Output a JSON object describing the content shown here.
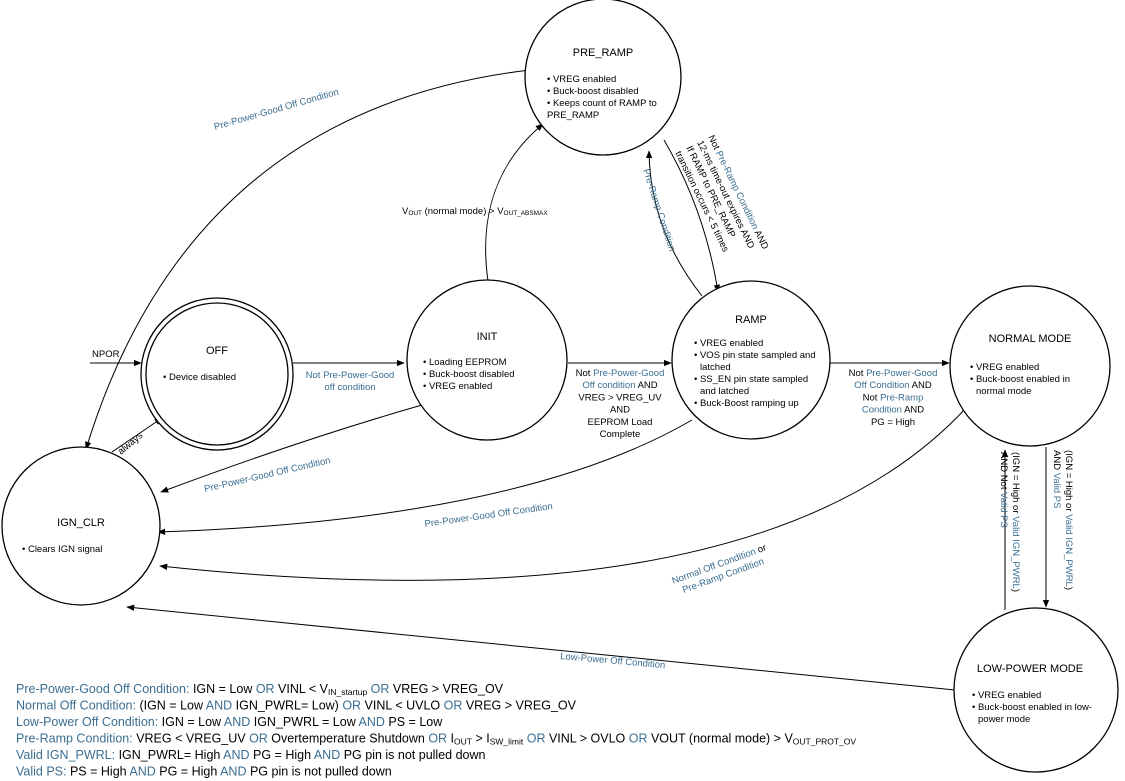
{
  "colors": {
    "keyword": "#3b6e91",
    "text": "#000000"
  },
  "states": {
    "pre_ramp": {
      "title": "PRE_RAMP",
      "bullets": [
        "• VREG enabled",
        "• Buck-boost disabled",
        "• Keeps count of RAMP to",
        "PRE_RAMP"
      ]
    },
    "off": {
      "title": "OFF",
      "bullets": [
        "• Device disabled"
      ]
    },
    "init": {
      "title": "INIT",
      "bullets": [
        "• Loading EEPROM",
        "• Buck-boost disabled",
        "• VREG enabled"
      ]
    },
    "ramp": {
      "title": "RAMP",
      "bullets": [
        "• VREG enabled",
        "• VOS pin state sampled and",
        "latched",
        "• SS_EN pin state sampled",
        "and latched",
        "• Buck-Boost ramping up"
      ]
    },
    "normal": {
      "title": "NORMAL MODE",
      "bullets": [
        "• VREG enabled",
        "• Buck-boost enabled in",
        "normal mode"
      ]
    },
    "ign_clr": {
      "title": "IGN_CLR",
      "bullets": [
        "• Clears IGN signal"
      ]
    },
    "low_power": {
      "title": "LOW-POWER MODE",
      "bullets": [
        "• VREG enabled",
        "• Buck-boost enabled in low-",
        "power mode"
      ]
    }
  },
  "edges": {
    "npor": [
      [
        [
          "NPOR",
          "n"
        ]
      ]
    ],
    "always": [
      [
        [
          "always",
          "n"
        ]
      ]
    ],
    "off_to_init": [
      [
        [
          "Not Pre-Power-Good",
          "k"
        ]
      ],
      [
        [
          "off condition",
          "k"
        ]
      ]
    ],
    "init_to_ramp": [
      [
        [
          "Not ",
          "n"
        ],
        [
          "Pre-Power-Good",
          "k"
        ]
      ],
      [
        [
          "Off condition",
          "k"
        ],
        [
          " AND",
          "n"
        ]
      ],
      [
        [
          "VREG > VREG_UV",
          "n"
        ]
      ],
      [
        [
          "AND",
          "n"
        ]
      ],
      [
        [
          "EEPROM Load",
          "n"
        ]
      ],
      [
        [
          "Complete",
          "n"
        ]
      ]
    ],
    "ramp_to_normal": [
      [
        [
          "Not ",
          "n"
        ],
        [
          "Pre-Power-Good",
          "k"
        ]
      ],
      [
        [
          "Off Condition",
          "k"
        ],
        [
          " AND",
          "n"
        ]
      ],
      [
        [
          "Not ",
          "n"
        ],
        [
          "Pre-Ramp",
          "k"
        ]
      ],
      [
        [
          "Condition",
          "k"
        ],
        [
          " AND",
          "n"
        ]
      ],
      [
        [
          "PG = High",
          "n"
        ]
      ]
    ],
    "init_to_pre_ramp": [
      [
        [
          "V",
          "n"
        ],
        [
          "OUT",
          "sub"
        ],
        [
          " (normal mode) > V",
          "n"
        ],
        [
          "OUT_ABSMAX",
          "sub"
        ]
      ]
    ],
    "pre_ramp_to_ign_clr": [
      [
        [
          "Pre-Power-Good Off Condition",
          "k"
        ]
      ]
    ],
    "init_to_ign_clr": [
      [
        [
          "Pre-Power-Good Off Condition",
          "k"
        ]
      ]
    ],
    "ramp_to_ign_clr": [
      [
        [
          "Pre-Power-Good Off Condition",
          "k"
        ]
      ]
    ],
    "normal_to_ign_clr": [
      [
        [
          "Normal Off Condition",
          "k"
        ],
        [
          " or",
          "n"
        ]
      ],
      [
        [
          "Pre-Ramp Condition",
          "k"
        ]
      ]
    ],
    "low_power_to_ign_clr": [
      [
        [
          "Low-Power Off Condition",
          "k"
        ]
      ]
    ],
    "ramp_to_pre_ramp": [
      [
        [
          "Pre-Ramp Condition",
          "k"
        ]
      ]
    ],
    "pre_ramp_to_ramp": [
      [
        [
          "Not ",
          "n"
        ],
        [
          "Pre-Ramp Condition",
          "k"
        ],
        [
          " AND",
          "n"
        ]
      ],
      [
        [
          "12-ms time-out expires AND",
          "n"
        ]
      ],
      [
        [
          "If RAMP to PRE_RAMP",
          "n"
        ]
      ],
      [
        [
          "transition occurs < 5 times",
          "n"
        ]
      ]
    ],
    "normal_to_low_power": [
      [
        [
          "(IGN = High or ",
          "n"
        ],
        [
          "Valid IGN_PWRL",
          "k"
        ],
        [
          ")",
          "n"
        ]
      ],
      [
        [
          "AND ",
          "n"
        ],
        [
          "Valid PS",
          "k"
        ]
      ]
    ],
    "low_power_to_normal": [
      [
        [
          "(IGN = High or ",
          "n"
        ],
        [
          "Valid IGN_PWRL",
          "k"
        ],
        [
          ")",
          "n"
        ]
      ],
      [
        [
          "AND Not ",
          "n"
        ],
        [
          "Valid PS",
          "k"
        ]
      ]
    ]
  },
  "legend": [
    [
      [
        "Pre-Power-Good Off Condition:",
        "k"
      ],
      [
        "  IGN = Low ",
        "n"
      ],
      [
        "OR",
        "k"
      ],
      [
        " VINL < V",
        "n"
      ],
      [
        "IN_startup",
        "sub"
      ],
      [
        "  ",
        "n"
      ],
      [
        "OR",
        "k"
      ],
      [
        " VREG > VREG_OV",
        "n"
      ]
    ],
    [
      [
        "Normal Off Condition:",
        "k"
      ],
      [
        " (IGN = Low ",
        "n"
      ],
      [
        "AND",
        "k"
      ],
      [
        " IGN_PWRL= Low) ",
        "n"
      ],
      [
        "OR",
        "k"
      ],
      [
        " VINL < UVLO ",
        "n"
      ],
      [
        "OR",
        "k"
      ],
      [
        " VREG > VREG_OV",
        "n"
      ]
    ],
    [
      [
        "Low-Power Off Condition:",
        "k"
      ],
      [
        "  IGN = Low ",
        "n"
      ],
      [
        "AND",
        "k"
      ],
      [
        " IGN_PWRL = Low ",
        "n"
      ],
      [
        "AND",
        "k"
      ],
      [
        " PS = Low",
        "n"
      ]
    ],
    [
      [
        "Pre-Ramp Condition:",
        "k"
      ],
      [
        " VREG < VREG_UV ",
        "n"
      ],
      [
        "OR",
        "k"
      ],
      [
        " Overtemperature Shutdown ",
        "n"
      ],
      [
        "OR",
        "k"
      ],
      [
        " I",
        "n"
      ],
      [
        "OUT",
        "sub"
      ],
      [
        " > I",
        "n"
      ],
      [
        "SW_limit",
        "sub"
      ],
      [
        " ",
        "n"
      ],
      [
        "OR",
        "k"
      ],
      [
        " VINL > OVLO ",
        "n"
      ],
      [
        "OR",
        "k"
      ],
      [
        " VOUT (normal mode)  > V",
        "n"
      ],
      [
        "OUT_PROT_OV",
        "sub"
      ]
    ],
    [
      [
        "Valid IGN_PWRL:",
        "k"
      ],
      [
        " IGN_PWRL= High ",
        "n"
      ],
      [
        "AND",
        "k"
      ],
      [
        " PG = High ",
        "n"
      ],
      [
        "AND",
        "k"
      ],
      [
        " PG pin is not pulled down",
        "n"
      ]
    ],
    [
      [
        "Valid PS:",
        "k"
      ],
      [
        " PS = High ",
        "n"
      ],
      [
        "AND",
        "k"
      ],
      [
        " PG = High ",
        "n"
      ],
      [
        "AND",
        "k"
      ],
      [
        " PG pin is not pulled down",
        "n"
      ]
    ]
  ]
}
